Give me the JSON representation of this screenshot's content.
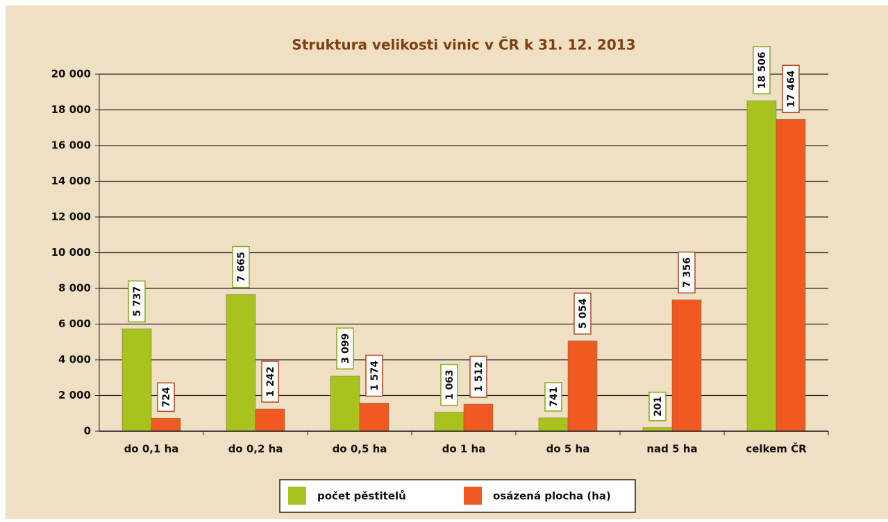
{
  "chart_data": {
    "type": "bar",
    "title": "Struktura velikosti vinic v ČR k 31. 12. 2013",
    "categories": [
      "do 0,1 ha",
      "do 0,2 ha",
      "do 0,5 ha",
      "do 1 ha",
      "do 5 ha",
      "nad 5 ha",
      "celkem ČR"
    ],
    "series": [
      {
        "name": "počet pěstitelů",
        "color": "#a8c31d",
        "values": [
          5737,
          7665,
          3099,
          1063,
          741,
          201,
          18506
        ],
        "value_labels": [
          "5 737",
          "7 665",
          "3 099",
          "1 063",
          "741",
          "201",
          "18 506"
        ]
      },
      {
        "name": "osázená plocha (ha)",
        "color": "#f05a22",
        "values": [
          724,
          1242,
          1574,
          1512,
          5054,
          7356,
          17464
        ],
        "value_labels": [
          "724",
          "1 242",
          "1 574",
          "1 512",
          "5 054",
          "7 356",
          "17 464"
        ]
      }
    ],
    "ylim": [
      0,
      20000
    ],
    "yticks": [
      0,
      {
        "value": 2000,
        "label": "2 000"
      },
      {
        "value": 4000,
        "label": "4 000"
      },
      {
        "value": 6000,
        "label": "6 000"
      },
      {
        "value": 8000,
        "label": "8 000"
      },
      {
        "value": 10000,
        "label": "10 000"
      },
      {
        "value": 12000,
        "label": "12 000"
      },
      {
        "value": 14000,
        "label": "14 000"
      },
      {
        "value": 16000,
        "label": "16 000"
      },
      {
        "value": 18000,
        "label": "18 000"
      },
      {
        "value": 20000,
        "label": "20 000"
      }
    ],
    "grid": true,
    "legend": "bottom"
  }
}
